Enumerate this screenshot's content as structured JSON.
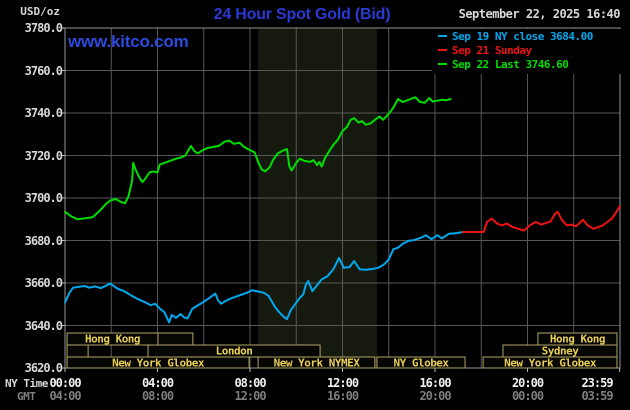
{
  "header": {
    "unit": "USD/oz",
    "title": "24 Hour Spot Gold (Bid)",
    "datetime": "September 22, 2025 16:40",
    "watermark": "www.kitco.com"
  },
  "legend": [
    {
      "label": "Sep 19 NY close 3684.00",
      "color": "#00A9EE"
    },
    {
      "label": "Sep 21 Sunday",
      "color": "#EE1313"
    },
    {
      "label": "Sep 22 Last 3746.60",
      "color": "#00DE00"
    }
  ],
  "axis": {
    "ny_time_label": "NY Time",
    "gmt_label": "GMT"
  },
  "colors": {
    "title": "#2B39D4",
    "watermark": "#2E4ADE",
    "grid": "#575757",
    "border": "#969696",
    "tick": "#B8B8B8",
    "band": "#15190E",
    "session_border": "#B1A468",
    "session_fill": "#060603",
    "session_text": "#E9CF55",
    "y_label": "#D8D8D8",
    "x_label": "#F2F2F2",
    "gmt_text": "#7E7E7E",
    "date_text": "#D8D8D8"
  },
  "chart_data": {
    "type": "line",
    "title": "24 Hour Spot Gold (Bid)",
    "y_axis": {
      "unit": "USD/oz",
      "min": 3620,
      "max": 3780,
      "tick_step": 20,
      "tick_labels": [
        "3780.0",
        "3760.0",
        "3740.0",
        "3720.0",
        "3700.0",
        "3680.0",
        "3660.0",
        "3640.0",
        "3620.0"
      ]
    },
    "x_axis": {
      "hours": [
        0,
        24
      ],
      "ticks": [
        {
          "h": 0,
          "ny": "00:00",
          "gmt": "04:00"
        },
        {
          "h": 4,
          "ny": "04:00",
          "gmt": "08:00"
        },
        {
          "h": 8,
          "ny": "08:00",
          "gmt": "12:00"
        },
        {
          "h": 12,
          "ny": "12:00",
          "gmt": "16:00"
        },
        {
          "h": 16,
          "ny": "16:00",
          "gmt": "20:00"
        },
        {
          "h": 20,
          "ny": "20:00",
          "gmt": "00:00"
        },
        {
          "h": 23.983,
          "ny": "23:59",
          "gmt": "03:59"
        }
      ]
    },
    "nymex_band_hours": [
      8.35,
      13.49
    ],
    "sessions": [
      {
        "row": 0,
        "start_hour": 0.09,
        "end_hour": 4.02,
        "label": "Hong Kong"
      },
      {
        "row": 0,
        "start_hour": 4.02,
        "end_hour": 5.53,
        "label": ""
      },
      {
        "row": 0,
        "start_hour": 20.45,
        "end_hour": 23.87,
        "label": "Hong Kong"
      },
      {
        "row": 1,
        "start_hour": 0.09,
        "end_hour": 1.0,
        "label": ""
      },
      {
        "row": 1,
        "start_hour": 3.59,
        "end_hour": 11.03,
        "label": "London"
      },
      {
        "row": 1,
        "start_hour": 18.94,
        "end_hour": 23.87,
        "label": "Sydney"
      },
      {
        "row": 2,
        "start_hour": 0.09,
        "end_hour": 7.96,
        "label": "New York Globex"
      },
      {
        "row": 2,
        "start_hour": 8.35,
        "end_hour": 13.4,
        "label": "New York NYMEX"
      },
      {
        "row": 2,
        "start_hour": 13.49,
        "end_hour": 17.3,
        "label": "NY Globex"
      },
      {
        "row": 2,
        "start_hour": 18.08,
        "end_hour": 23.87,
        "label": "New York Globex"
      }
    ],
    "series": [
      {
        "name": "Sep 19 NY close 3684.00",
        "color": "#00A9EE",
        "points": [
          [
            0,
            3650.8
          ],
          [
            0.2,
            3655.5
          ],
          [
            0.35,
            3657.8
          ],
          [
            0.6,
            3658.2
          ],
          [
            0.85,
            3658.6
          ],
          [
            1.05,
            3657.8
          ],
          [
            1.3,
            3658.4
          ],
          [
            1.55,
            3657.6
          ],
          [
            1.75,
            3658.6
          ],
          [
            1.95,
            3659.8
          ],
          [
            2.1,
            3658.6
          ],
          [
            2.3,
            3657.2
          ],
          [
            2.55,
            3656.2
          ],
          [
            2.85,
            3654.2
          ],
          [
            3.15,
            3652.4
          ],
          [
            3.45,
            3651
          ],
          [
            3.7,
            3649.6
          ],
          [
            3.9,
            3650.2
          ],
          [
            4.1,
            3648
          ],
          [
            4.3,
            3646.2
          ],
          [
            4.5,
            3641.5
          ],
          [
            4.62,
            3645
          ],
          [
            4.8,
            3643.6
          ],
          [
            5,
            3645.4
          ],
          [
            5.15,
            3643.8
          ],
          [
            5.3,
            3643.4
          ],
          [
            5.5,
            3647.8
          ],
          [
            5.7,
            3649.2
          ],
          [
            5.95,
            3650.8
          ],
          [
            6.2,
            3652.6
          ],
          [
            6.4,
            3654.2
          ],
          [
            6.5,
            3655
          ],
          [
            6.62,
            3651.8
          ],
          [
            6.75,
            3650.2
          ],
          [
            6.95,
            3651.6
          ],
          [
            7.15,
            3652.6
          ],
          [
            7.4,
            3653.6
          ],
          [
            7.65,
            3654.6
          ],
          [
            7.9,
            3655.6
          ],
          [
            8.1,
            3656.6
          ],
          [
            8.35,
            3656
          ],
          [
            8.6,
            3655.4
          ],
          [
            8.8,
            3654
          ],
          [
            8.95,
            3651.2
          ],
          [
            9.1,
            3648.4
          ],
          [
            9.3,
            3645.8
          ],
          [
            9.5,
            3643.7
          ],
          [
            9.6,
            3643
          ],
          [
            9.75,
            3647
          ],
          [
            9.95,
            3650
          ],
          [
            10.15,
            3653
          ],
          [
            10.3,
            3654.6
          ],
          [
            10.42,
            3659.4
          ],
          [
            10.52,
            3660.9
          ],
          [
            10.7,
            3656.2
          ],
          [
            10.9,
            3659
          ],
          [
            11.1,
            3661.7
          ],
          [
            11.35,
            3663.2
          ],
          [
            11.6,
            3666.4
          ],
          [
            11.85,
            3671.8
          ],
          [
            12.05,
            3667.2
          ],
          [
            12.3,
            3667.5
          ],
          [
            12.5,
            3670.3
          ],
          [
            12.75,
            3666.4
          ],
          [
            13,
            3666.2
          ],
          [
            13.3,
            3666.6
          ],
          [
            13.55,
            3667.2
          ],
          [
            13.8,
            3668.8
          ],
          [
            14,
            3671.1
          ],
          [
            14.2,
            3675.9
          ],
          [
            14.4,
            3676.6
          ],
          [
            14.6,
            3678.4
          ],
          [
            14.85,
            3679.8
          ],
          [
            15.1,
            3680.2
          ],
          [
            15.4,
            3681.3
          ],
          [
            15.6,
            3682.5
          ],
          [
            15.85,
            3680.6
          ],
          [
            16.1,
            3682.5
          ],
          [
            16.3,
            3681
          ],
          [
            16.6,
            3683.2
          ],
          [
            16.9,
            3683.4
          ],
          [
            17.2,
            3684
          ]
        ]
      },
      {
        "name": "Sep 21 Sunday",
        "color": "#EE1313",
        "points": [
          [
            17.2,
            3684
          ],
          [
            18.1,
            3684
          ],
          [
            18.25,
            3688.7
          ],
          [
            18.45,
            3690.3
          ],
          [
            18.7,
            3687.9
          ],
          [
            18.9,
            3687.1
          ],
          [
            19.1,
            3688
          ],
          [
            19.35,
            3686.3
          ],
          [
            19.6,
            3685.5
          ],
          [
            19.85,
            3684.7
          ],
          [
            20.1,
            3687.1
          ],
          [
            20.35,
            3688.7
          ],
          [
            20.6,
            3687.5
          ],
          [
            20.8,
            3688.3
          ],
          [
            21,
            3689
          ],
          [
            21.2,
            3692.7
          ],
          [
            21.3,
            3693.5
          ],
          [
            21.5,
            3689.5
          ],
          [
            21.7,
            3687.1
          ],
          [
            21.9,
            3687.5
          ],
          [
            22.1,
            3686.7
          ],
          [
            22.4,
            3689.8
          ],
          [
            22.6,
            3687.1
          ],
          [
            22.85,
            3685.5
          ],
          [
            23.05,
            3686.3
          ],
          [
            23.25,
            3687.1
          ],
          [
            23.45,
            3688.7
          ],
          [
            23.65,
            3690.3
          ],
          [
            23.85,
            3693.5
          ],
          [
            24,
            3696.2
          ]
        ]
      },
      {
        "name": "Sep 22 Last 3746.60",
        "color": "#00DE00",
        "points": [
          [
            0,
            3693.5
          ],
          [
            0.25,
            3691.5
          ],
          [
            0.55,
            3690
          ],
          [
            0.9,
            3690.5
          ],
          [
            1.2,
            3691
          ],
          [
            1.5,
            3694
          ],
          [
            1.8,
            3697.5
          ],
          [
            2,
            3699
          ],
          [
            2.2,
            3699.5
          ],
          [
            2.45,
            3698
          ],
          [
            2.6,
            3697.5
          ],
          [
            2.75,
            3701
          ],
          [
            2.9,
            3708
          ],
          [
            2.95,
            3716.5
          ],
          [
            3.05,
            3713.5
          ],
          [
            3.2,
            3710
          ],
          [
            3.35,
            3707.5
          ],
          [
            3.5,
            3709.5
          ],
          [
            3.65,
            3712
          ],
          [
            3.8,
            3712.5
          ],
          [
            4,
            3712
          ],
          [
            4.1,
            3715.8
          ],
          [
            4.3,
            3716.5
          ],
          [
            4.55,
            3717.5
          ],
          [
            4.8,
            3718.5
          ],
          [
            5,
            3719
          ],
          [
            5.2,
            3720
          ],
          [
            5.45,
            3724.5
          ],
          [
            5.6,
            3722
          ],
          [
            5.75,
            3721
          ],
          [
            5.95,
            3722.5
          ],
          [
            6.15,
            3723.5
          ],
          [
            6.4,
            3724
          ],
          [
            6.65,
            3724.5
          ],
          [
            6.9,
            3726.5
          ],
          [
            7.1,
            3727
          ],
          [
            7.3,
            3725.5
          ],
          [
            7.55,
            3726
          ],
          [
            7.75,
            3724
          ],
          [
            8,
            3722.5
          ],
          [
            8.2,
            3721.5
          ],
          [
            8.35,
            3717
          ],
          [
            8.5,
            3713.5
          ],
          [
            8.65,
            3712.5
          ],
          [
            8.85,
            3714.5
          ],
          [
            9,
            3718
          ],
          [
            9.2,
            3721
          ],
          [
            9.45,
            3722.5
          ],
          [
            9.6,
            3723
          ],
          [
            9.7,
            3715
          ],
          [
            9.8,
            3713
          ],
          [
            10,
            3716.5
          ],
          [
            10.15,
            3718.5
          ],
          [
            10.35,
            3717.5
          ],
          [
            10.6,
            3717
          ],
          [
            10.75,
            3717.8
          ],
          [
            10.9,
            3715.5
          ],
          [
            11,
            3717
          ],
          [
            11.1,
            3714.8
          ],
          [
            11.25,
            3719
          ],
          [
            11.45,
            3722.5
          ],
          [
            11.6,
            3725
          ],
          [
            11.8,
            3727.5
          ],
          [
            12,
            3731.5
          ],
          [
            12.2,
            3733.5
          ],
          [
            12.35,
            3736.8
          ],
          [
            12.5,
            3737.6
          ],
          [
            12.7,
            3735.5
          ],
          [
            12.85,
            3736.2
          ],
          [
            13,
            3734.5
          ],
          [
            13.2,
            3735
          ],
          [
            13.4,
            3736.8
          ],
          [
            13.6,
            3738.4
          ],
          [
            13.75,
            3736.8
          ],
          [
            13.95,
            3739
          ],
          [
            14.1,
            3741
          ],
          [
            14.25,
            3743.5
          ],
          [
            14.4,
            3746.6
          ],
          [
            14.6,
            3745.2
          ],
          [
            14.8,
            3746
          ],
          [
            15,
            3746.8
          ],
          [
            15.15,
            3747.4
          ],
          [
            15.35,
            3745.2
          ],
          [
            15.55,
            3744.8
          ],
          [
            15.75,
            3747
          ],
          [
            15.9,
            3745.4
          ],
          [
            16.1,
            3745.8
          ],
          [
            16.3,
            3746.2
          ],
          [
            16.5,
            3746
          ],
          [
            16.67,
            3746.6
          ]
        ]
      }
    ]
  }
}
